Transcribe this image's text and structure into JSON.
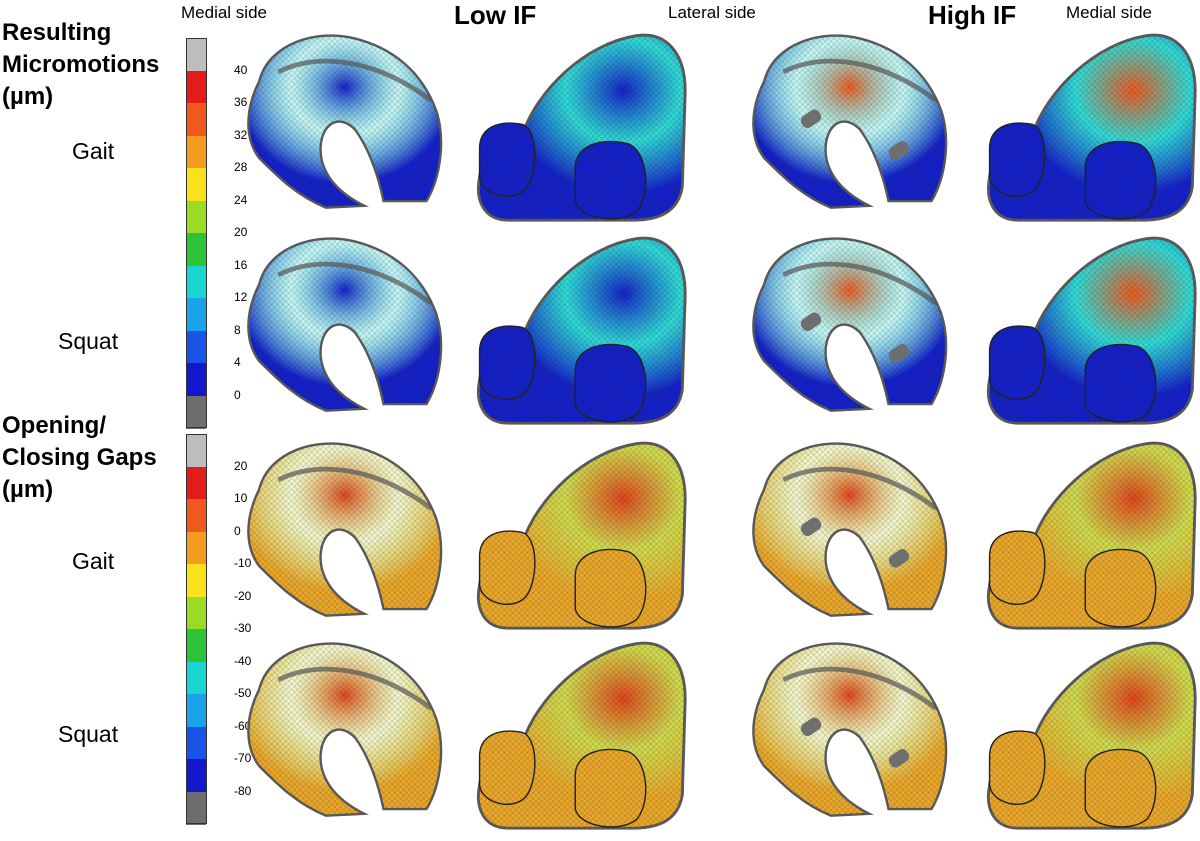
{
  "headers": {
    "medial_left": "Medial side",
    "low_if": "Low IF",
    "lateral": "Lateral side",
    "high_if": "High IF",
    "medial_right": "Medial side"
  },
  "sections": [
    {
      "title_lines": [
        "Resulting",
        "Micromotions",
        "(µm)"
      ],
      "rows": [
        "Gait",
        "Squat"
      ],
      "colorbar": {
        "ticks": [
          "40",
          "36",
          "32",
          "28",
          "24",
          "20",
          "16",
          "12",
          "8",
          "4",
          "0"
        ],
        "colors": [
          "#bdbdbd",
          "#e31b1b",
          "#f0591e",
          "#f39c1f",
          "#f7e21c",
          "#9adc24",
          "#2dc43a",
          "#19d6d0",
          "#1aa3e8",
          "#1a54e6",
          "#1418cc",
          "#6e6e6e"
        ]
      },
      "base_color": "#1420c8",
      "mesh_hot": [
        "#f0591e",
        "#19d6d0"
      ]
    },
    {
      "title_lines": [
        "Opening/",
        "Closing Gaps",
        "(µm)"
      ],
      "rows": [
        "Gait",
        "Squat"
      ],
      "colorbar": {
        "ticks": [
          "20",
          "10",
          "0",
          "-10",
          "-20",
          "-30",
          "-40",
          "-50",
          "-60",
          "-70",
          "-80"
        ],
        "colors": [
          "#bdbdbd",
          "#e31b1b",
          "#f0591e",
          "#f39c1f",
          "#f7e21c",
          "#9adc24",
          "#2dc43a",
          "#19d6d0",
          "#1aa3e8",
          "#1a54e6",
          "#1418cc",
          "#6e6e6e"
        ]
      },
      "base_color": "#e8a62a",
      "mesh_hot": [
        "#e0451c",
        "#c9d63a"
      ]
    }
  ],
  "colors": {
    "implant_edge": "#5a5a5a",
    "mesh_line": "#1c1c1c"
  }
}
